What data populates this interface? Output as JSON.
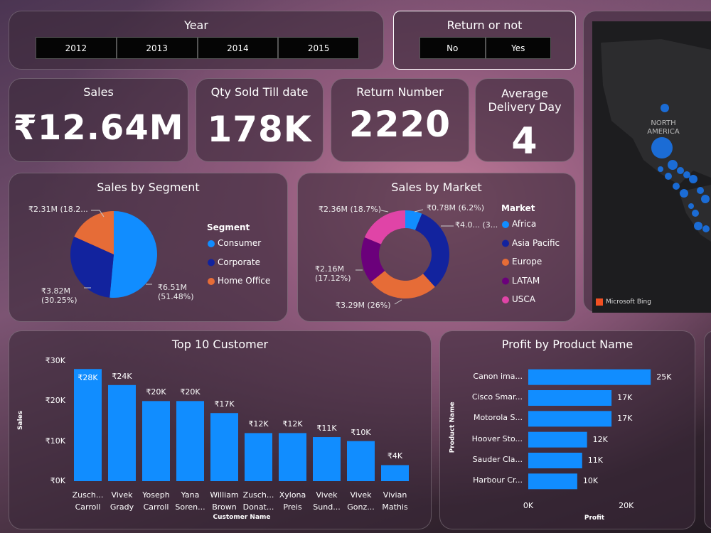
{
  "filters": [
    {
      "title": "Year",
      "options": [
        "2012",
        "2013",
        "2014",
        "2015"
      ]
    },
    {
      "title": "Return or not",
      "options": [
        "No",
        "Yes"
      ]
    }
  ],
  "kpis": [
    {
      "title": "Sales",
      "value": "₹12.64M"
    },
    {
      "title": "Qty Sold Till date",
      "value": "178K"
    },
    {
      "title": "Return Number",
      "value": "2220"
    },
    {
      "title": "Average Delivery Day",
      "value": "4"
    }
  ],
  "map": {
    "labels": [
      "NORTH AMERICA"
    ],
    "attribution": "Microsoft Bing"
  },
  "chart_data": [
    {
      "type": "pie",
      "title": "Sales by Segment",
      "legend_title": "Segment",
      "categories": [
        "Consumer",
        "Corporate",
        "Home Office"
      ],
      "values": [
        6.51,
        3.82,
        2.31
      ],
      "value_labels": [
        "₹6.51M\n(51.48%)",
        "₹3.82M\n(30.25%)",
        "₹2.31M (18.2..."
      ],
      "colors": [
        "#118dff",
        "#12239e",
        "#e66c37"
      ]
    },
    {
      "type": "donut",
      "title": "Sales by Market",
      "legend_title": "Market",
      "categories": [
        "Africa",
        "Asia Pacific",
        "Europe",
        "LATAM",
        "USCA"
      ],
      "values": [
        0.78,
        4.05,
        3.29,
        2.16,
        2.36
      ],
      "value_labels": [
        "₹0.78M (6.2%)",
        "₹4.0... (3...",
        "₹3.29M (26%)",
        "₹2.16M\n(17.12%)",
        "₹2.36M (18.7%)"
      ],
      "colors": [
        "#118dff",
        "#12239e",
        "#e66c37",
        "#6b007b",
        "#e044a7"
      ]
    },
    {
      "type": "bar",
      "title": "Top 10 Customer",
      "x_label": "Customer Name",
      "y_label": "Sales",
      "categories": [
        "Zusch...\nCarroll",
        "Vivek\nGrady",
        "Yoseph\nCarroll",
        "Yana\nSoren...",
        "William\nBrown",
        "Zusch...\nDonat...",
        "Xylona\nPreis",
        "Vivek\nSund...",
        "Vivek\nGonz...",
        "Vivian\nMathis"
      ],
      "values": [
        28000,
        24000,
        20000,
        20000,
        17000,
        12000,
        12000,
        11000,
        10000,
        4000
      ],
      "value_labels": [
        "₹28K",
        "₹24K",
        "₹20K",
        "₹20K",
        "₹17K",
        "₹12K",
        "₹12K",
        "₹11K",
        "₹10K",
        "₹4K"
      ],
      "color": "#118dff",
      "ylim": [
        0,
        30000
      ],
      "yticks": [
        {
          "value": 0,
          "label": "₹0K"
        },
        {
          "value": 10000,
          "label": "₹10K"
        },
        {
          "value": 20000,
          "label": "₹20K"
        },
        {
          "value": 30000,
          "label": "₹30K"
        }
      ]
    },
    {
      "type": "hbar",
      "title": "Profit by Product Name",
      "x_label": "Profit",
      "y_label": "Product Name",
      "categories": [
        "Canon ima...",
        "Cisco Smar...",
        "Motorola S...",
        "Hoover Sto...",
        "Sauder Cla...",
        "Harbour Cr..."
      ],
      "values": [
        25000,
        17000,
        17000,
        12000,
        11000,
        10000
      ],
      "value_labels": [
        "25K",
        "17K",
        "17K",
        "12K",
        "11K",
        "10K"
      ],
      "color": "#118dff",
      "xlim": [
        0,
        27000
      ],
      "xticks": [
        {
          "value": 0,
          "label": "0K"
        },
        {
          "value": 20000,
          "label": "20K"
        }
      ]
    }
  ]
}
